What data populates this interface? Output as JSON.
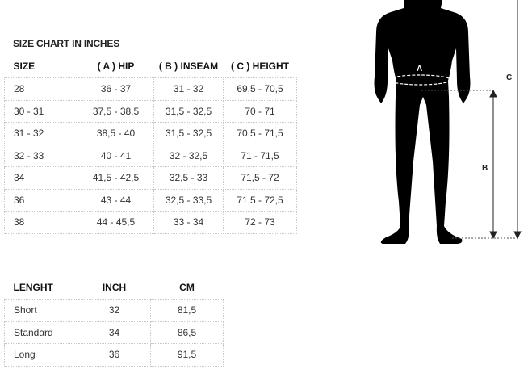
{
  "size_chart": {
    "title": "SIZE CHART IN INCHES",
    "headers": [
      "SIZE",
      "( A ) HIP",
      "( B ) INSEAM",
      "( C ) HEIGHT"
    ],
    "rows": [
      [
        "28",
        "36 - 37",
        "31 - 32",
        "69,5 - 70,5"
      ],
      [
        "30 - 31",
        "37,5 - 38,5",
        "31,5 - 32,5",
        "70 - 71"
      ],
      [
        "31 - 32",
        "38,5 - 40",
        "31,5 - 32,5",
        "70,5 - 71,5"
      ],
      [
        "32 - 33",
        "40 - 41",
        "32 - 32,5",
        "71 - 71,5"
      ],
      [
        "34",
        "41,5 - 42,5",
        "32,5 - 33",
        "71,5 - 72"
      ],
      [
        "36",
        "43 - 44",
        "32,5 - 33,5",
        "71,5 - 72,5"
      ],
      [
        "38",
        "44 - 45,5",
        "33 - 34",
        "72 - 73"
      ]
    ]
  },
  "length_chart": {
    "headers": [
      "LENGHT",
      "INCH",
      "CM"
    ],
    "rows": [
      [
        "Short",
        "32",
        "81,5"
      ],
      [
        "Standard",
        "34",
        "86,5"
      ],
      [
        "Long",
        "36",
        "91,5"
      ]
    ]
  },
  "figure": {
    "labels": {
      "a": "A",
      "b": "B",
      "c": "C"
    }
  }
}
